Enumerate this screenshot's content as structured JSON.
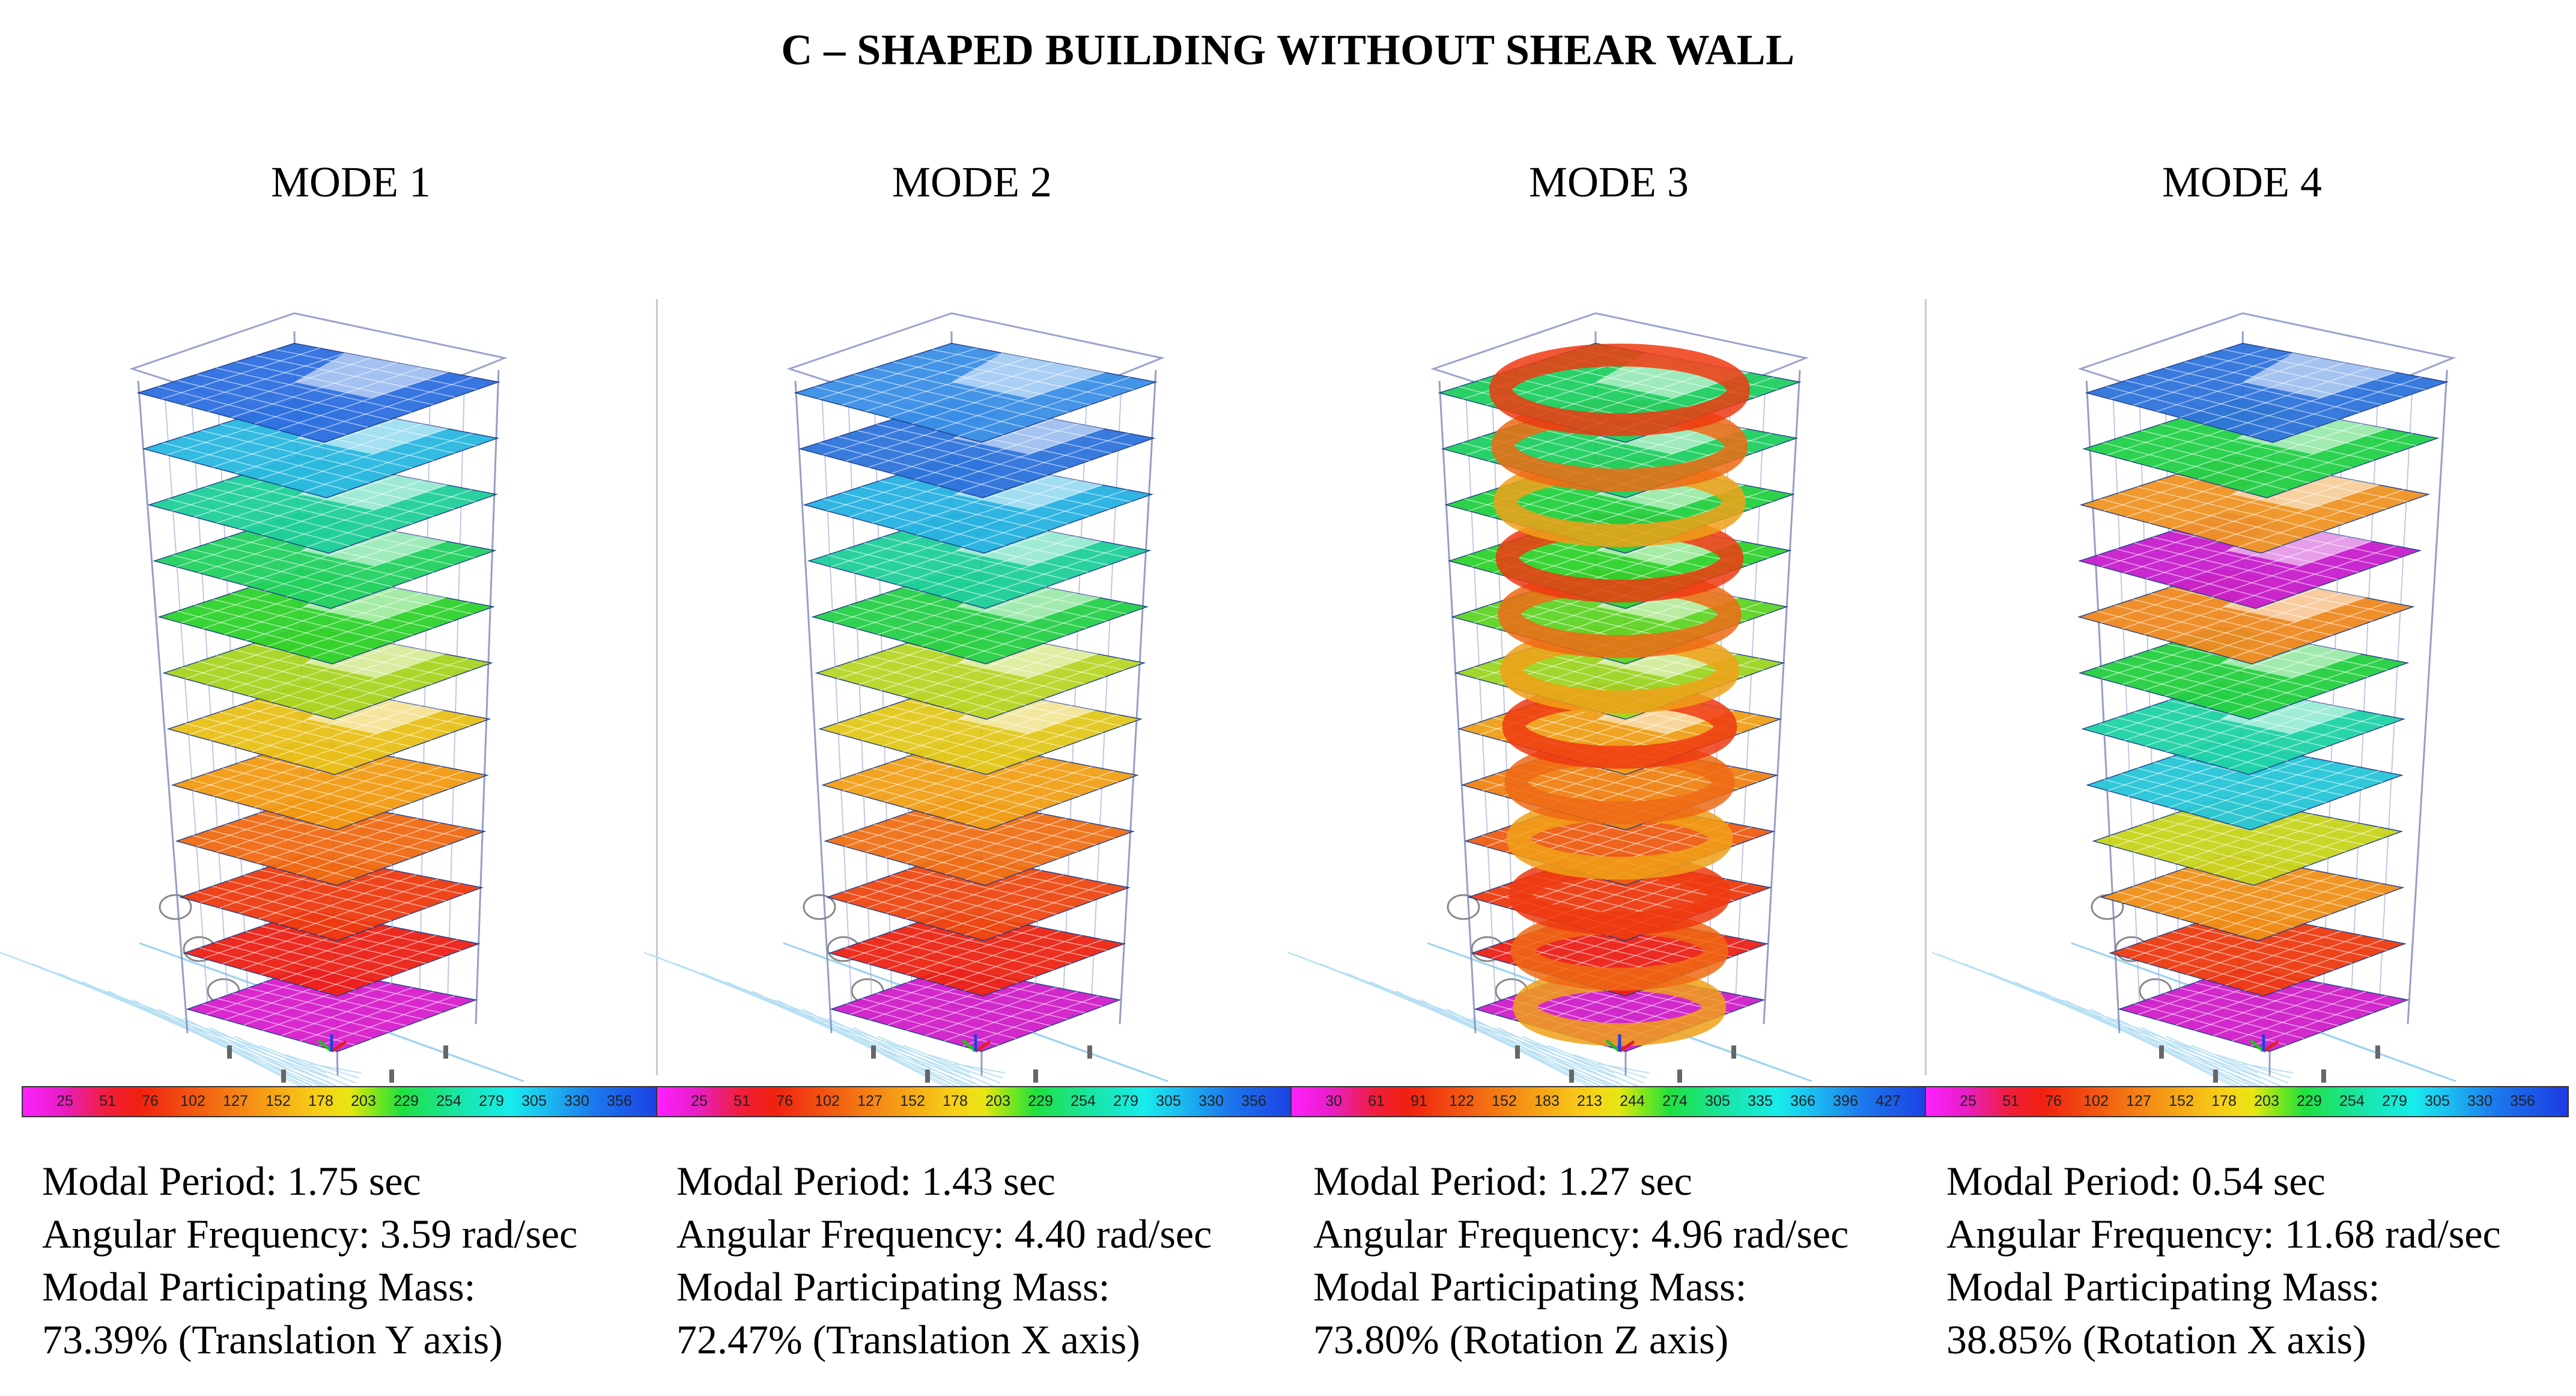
{
  "title": "C – SHAPED BUILDING WITHOUT SHEAR WALL",
  "modes": [
    {
      "name": "MODE 1",
      "type": "transY",
      "legend": [
        "25",
        "51",
        "76",
        "102",
        "127",
        "152",
        "178",
        "203",
        "229",
        "254",
        "279",
        "305",
        "330",
        "356"
      ],
      "floor_colors": [
        "#2e6fe0",
        "#29b8e0",
        "#1fcf9a",
        "#22d160",
        "#2fd22c",
        "#a8d420",
        "#e8c018",
        "#f39a12",
        "#f06a12",
        "#ee3a10",
        "#ec2016",
        "#d81ecc"
      ],
      "period": "Modal Period: 1.75 sec",
      "frequency": "Angular Frequency: 3.59 rad/sec",
      "mass_label": "Modal Participating Mass:",
      "mass": "73.39% (Translation Y axis)"
    },
    {
      "name": "MODE 2",
      "type": "transX",
      "legend": [
        "25",
        "51",
        "76",
        "102",
        "127",
        "152",
        "178",
        "203",
        "229",
        "254",
        "279",
        "305",
        "330",
        "356"
      ],
      "floor_colors": [
        "#3a8fe6",
        "#2f73dc",
        "#27b2e2",
        "#1fcf9a",
        "#27d048",
        "#b8d628",
        "#e2c91c",
        "#f2a018",
        "#f07016",
        "#ee4812",
        "#ec2414",
        "#d01ec8"
      ],
      "period": "Modal Period: 1.43 sec",
      "frequency": "Angular Frequency: 4.40 rad/sec",
      "mass_label": "Modal Participating Mass:",
      "mass": "72.47% (Translation X axis)"
    },
    {
      "name": "MODE 3",
      "type": "rotZ",
      "legend": [
        "30",
        "61",
        "91",
        "122",
        "152",
        "183",
        "213",
        "244",
        "274",
        "305",
        "335",
        "366",
        "396",
        "427"
      ],
      "floor_colors": [
        "#1fcf60",
        "#1fcf60",
        "#23d040",
        "#2fd22c",
        "#5fd426",
        "#9dd422",
        "#f0a018",
        "#f08214",
        "#ef5c12",
        "#ee3a10",
        "#ec2018",
        "#d01ec8"
      ],
      "period": "Modal Period: 1.27 sec",
      "frequency": "Angular Frequency: 4.96 rad/sec",
      "mass_label": "Modal Participating Mass:",
      "mass": "73.80% (Rotation Z axis)"
    },
    {
      "name": "MODE 4",
      "type": "rotX",
      "legend": [
        "25",
        "51",
        "76",
        "102",
        "127",
        "152",
        "178",
        "203",
        "229",
        "254",
        "279",
        "305",
        "330",
        "356"
      ],
      "floor_colors": [
        "#2f73dc",
        "#22d048",
        "#ef9424",
        "#c81ecc",
        "#ef8a20",
        "#24cf40",
        "#1fd2a6",
        "#26c6d8",
        "#c8d41c",
        "#f09018",
        "#ee3a10",
        "#d01ec8"
      ],
      "period": "Modal Period: 0.54 sec",
      "frequency": "Angular Frequency: 11.68 rad/sec",
      "mass_label": "Modal Participating Mass:",
      "mass": "38.85% (Rotation X axis)"
    }
  ]
}
